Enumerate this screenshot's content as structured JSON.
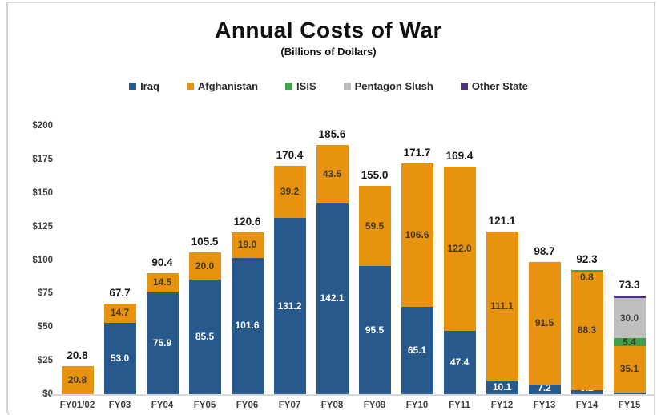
{
  "page": {
    "title": "Annual Costs of War",
    "subtitle": "(Billions of Dollars)"
  },
  "chart_data": {
    "type": "bar",
    "stacked": true,
    "title": "Annual Costs of War",
    "subtitle": "(Billions of Dollars)",
    "legend_position": "top",
    "grid": false,
    "ylim": [
      0,
      200
    ],
    "y_tick_values": [
      0,
      25,
      50,
      75,
      100,
      125,
      150,
      175,
      200
    ],
    "y_tick_labels": [
      "$0",
      "$25",
      "$50",
      "$75",
      "$100",
      "$125",
      "$150",
      "$175",
      "$200"
    ],
    "categories": [
      "FY01/02",
      "FY03",
      "FY04",
      "FY05",
      "FY06",
      "FY07",
      "FY08",
      "FY09",
      "FY10",
      "FY11",
      "FY12",
      "FY13",
      "FY14",
      "FY15"
    ],
    "series": [
      {
        "name": "Iraq",
        "color": "#27598c",
        "label_color": "#ffffff",
        "show_labels": true,
        "values": [
          0,
          53.0,
          75.9,
          85.5,
          101.6,
          131.2,
          142.1,
          95.5,
          65.1,
          47.4,
          10.1,
          7.2,
          3.2,
          1.0
        ]
      },
      {
        "name": "Afghanistan",
        "color": "#e8930f",
        "label_color": "#41392a",
        "show_labels": true,
        "values": [
          20.8,
          14.7,
          14.5,
          20.0,
          19.0,
          39.2,
          43.5,
          59.5,
          106.6,
          122.0,
          111.1,
          91.5,
          88.3,
          35.1
        ]
      },
      {
        "name": "ISIS",
        "color": "#41a04b",
        "label_color": "#2e3a26",
        "show_labels": true,
        "values": [
          0,
          0,
          0,
          0,
          0,
          0,
          0,
          0,
          0,
          0,
          0,
          0,
          0.8,
          5.4
        ]
      },
      {
        "name": "Pentagon Slush",
        "color": "#bfbfbf",
        "label_color": "#404040",
        "show_labels": true,
        "values": [
          0,
          0,
          0,
          0,
          0,
          0,
          0,
          0,
          0,
          0,
          0,
          0,
          0,
          30.0
        ]
      },
      {
        "name": "Other State",
        "color": "#4f3182",
        "label_color": "#ffffff",
        "show_labels": false,
        "values": [
          0,
          0,
          0,
          0,
          0,
          0,
          0,
          0,
          0,
          0,
          0,
          0,
          0,
          1.8
        ]
      }
    ],
    "totals": [
      20.8,
      67.7,
      90.4,
      105.5,
      120.6,
      170.4,
      185.6,
      155.0,
      171.7,
      169.4,
      121.1,
      98.7,
      92.3,
      73.3
    ],
    "axis_line_color": "#d9d9d9"
  }
}
